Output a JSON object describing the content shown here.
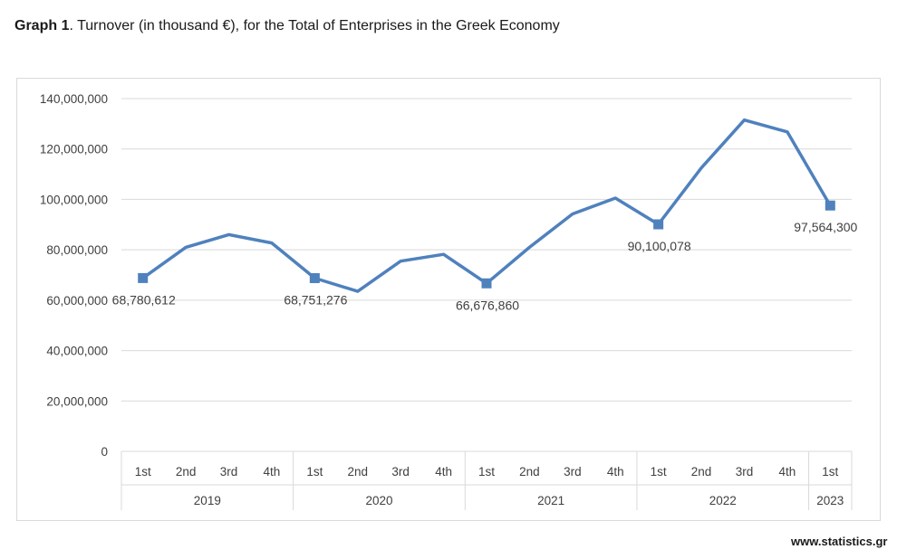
{
  "title": {
    "bold": "Graph 1",
    "rest": ". Turnover (in thousand €), for the Total of Enterprises in the Greek Economy"
  },
  "source": "www.statistics.gr",
  "colors": {
    "line": "#4f81bd",
    "grid": "#d9d9d9",
    "text": "#404040"
  },
  "chart_data": {
    "type": "line",
    "title": "Turnover (in thousand €), for the Total of Enterprises in the Greek Economy",
    "xlabel": "",
    "ylabel": "",
    "ylim": [
      0,
      140000000
    ],
    "yticks": [
      0,
      20000000,
      40000000,
      60000000,
      80000000,
      100000000,
      120000000,
      140000000
    ],
    "ytick_labels": [
      "0",
      "20,000,000",
      "40,000,000",
      "60,000,000",
      "80,000,000",
      "100,000,000",
      "120,000,000",
      "140,000,000"
    ],
    "grid": true,
    "legend": "none",
    "categories": [
      "1st",
      "2nd",
      "3rd",
      "4th",
      "1st",
      "2nd",
      "3rd",
      "4th",
      "1st",
      "2nd",
      "3rd",
      "4th",
      "1st",
      "2nd",
      "3rd",
      "4th",
      "1st"
    ],
    "groups": [
      {
        "label": "2019",
        "count": 4
      },
      {
        "label": "2020",
        "count": 4
      },
      {
        "label": "2021",
        "count": 4
      },
      {
        "label": "2022",
        "count": 4
      },
      {
        "label": "2023",
        "count": 1
      }
    ],
    "series": [
      {
        "name": "Turnover",
        "values": [
          68780612,
          81000000,
          86000000,
          82700000,
          68751276,
          63500000,
          75500000,
          78200000,
          66676860,
          81000000,
          94200000,
          100500000,
          90100078,
          112500000,
          131500000,
          126800000,
          97564300
        ]
      }
    ],
    "markers": [
      0,
      4,
      8,
      12,
      16
    ],
    "data_labels": [
      {
        "index": 0,
        "text": "68,780,612"
      },
      {
        "index": 4,
        "text": "68,751,276"
      },
      {
        "index": 8,
        "text": "66,676,860"
      },
      {
        "index": 12,
        "text": "90,100,078"
      },
      {
        "index": 16,
        "text": "97,564,300"
      }
    ]
  }
}
